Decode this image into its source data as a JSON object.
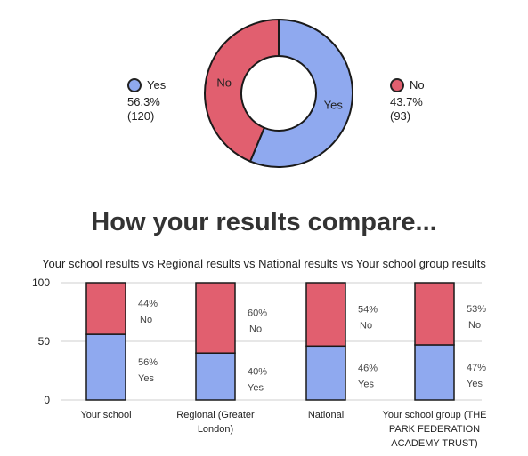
{
  "colors": {
    "yes": "#8fa9ef",
    "no": "#e15f6f",
    "outline": "#1a1a1a",
    "grid": "#cfcfcf"
  },
  "donut": {
    "yes": {
      "label": "Yes",
      "pct": "56.3%",
      "count": "(120)"
    },
    "no": {
      "label": "No",
      "pct": "43.7%",
      "count": "(93)"
    }
  },
  "heading": "How your results compare...",
  "subtitle": "Your school results vs Regional results vs National results vs Your school group results",
  "chart_data": [
    {
      "type": "pie",
      "labels": [
        "Yes",
        "No"
      ],
      "values": [
        56.3,
        43.7
      ],
      "counts": [
        120,
        93
      ],
      "legend": "left-and-right"
    },
    {
      "type": "bar",
      "stacked": true,
      "categories": [
        [
          "Your school"
        ],
        [
          "Regional (Greater",
          "London)"
        ],
        [
          "National"
        ],
        [
          "Your school group (THE",
          "PARK FEDERATION",
          "ACADEMY TRUST)"
        ]
      ],
      "series": [
        {
          "name": "Yes",
          "values": [
            56,
            40,
            46,
            47
          ],
          "labels": [
            "56%",
            "40%",
            "46%",
            "47%"
          ]
        },
        {
          "name": "No",
          "values": [
            44,
            60,
            54,
            53
          ],
          "labels": [
            "44%",
            "60%",
            "54%",
            "53%"
          ]
        }
      ],
      "yticks": [
        "100",
        "50",
        "0"
      ],
      "ylim": [
        0,
        100
      ],
      "grid": true
    }
  ]
}
